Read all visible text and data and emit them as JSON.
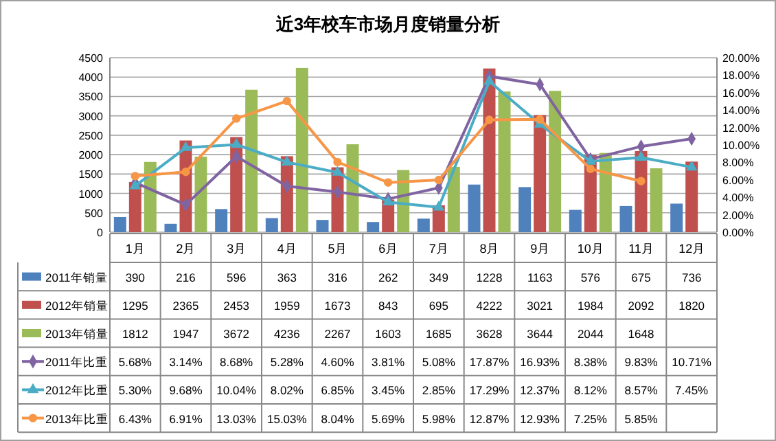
{
  "chart_data": {
    "type": "bar",
    "title": "近3年校车市场月度销量分析",
    "categories": [
      "1月",
      "2月",
      "3月",
      "4月",
      "5月",
      "6月",
      "7月",
      "8月",
      "9月",
      "10月",
      "11月",
      "12月"
    ],
    "series": [
      {
        "name": "2011年销量",
        "color": "#4f81bd",
        "values": [
          390,
          216,
          596,
          363,
          316,
          262,
          349,
          1228,
          1163,
          576,
          675,
          736
        ]
      },
      {
        "name": "2012年销量",
        "color": "#c0504d",
        "values": [
          1295,
          2365,
          2453,
          1959,
          1673,
          843,
          695,
          4222,
          3021,
          1984,
          2092,
          1820
        ]
      },
      {
        "name": "2013年销量",
        "color": "#9bbb59",
        "values": [
          1812,
          1947,
          3672,
          4236,
          2267,
          1603,
          1685,
          3628,
          3644,
          2044,
          1648,
          null
        ]
      },
      {
        "name": "2011年比重",
        "type": "line",
        "axis": "y2",
        "marker": "diamond",
        "color": "#8064a2",
        "values": [
          5.68,
          3.14,
          8.68,
          5.28,
          4.6,
          3.81,
          5.08,
          17.87,
          16.93,
          8.38,
          9.83,
          10.71
        ],
        "value_labels": [
          "5.68%",
          "3.14%",
          "8.68%",
          "5.28%",
          "4.60%",
          "3.81%",
          "5.08%",
          "17.87%",
          "16.93%",
          "8.38%",
          "9.83%",
          "10.71%"
        ]
      },
      {
        "name": "2012年比重",
        "type": "line",
        "axis": "y2",
        "marker": "triangle",
        "color": "#4bacc6",
        "values": [
          5.3,
          9.68,
          10.04,
          8.02,
          6.85,
          3.45,
          2.85,
          17.29,
          12.37,
          8.12,
          8.57,
          7.45
        ],
        "value_labels": [
          "5.30%",
          "9.68%",
          "10.04%",
          "8.02%",
          "6.85%",
          "3.45%",
          "2.85%",
          "17.29%",
          "12.37%",
          "8.12%",
          "8.57%",
          "7.45%"
        ]
      },
      {
        "name": "2013年比重",
        "type": "line",
        "axis": "y2",
        "marker": "circle",
        "color": "#f79646",
        "values": [
          6.43,
          6.91,
          13.03,
          15.03,
          8.04,
          5.69,
          5.98,
          12.87,
          12.93,
          7.25,
          5.85,
          null
        ],
        "value_labels": [
          "6.43%",
          "6.91%",
          "13.03%",
          "15.03%",
          "8.04%",
          "5.69%",
          "5.98%",
          "12.87%",
          "12.93%",
          "7.25%",
          "5.85%",
          null
        ]
      }
    ],
    "ylim": [
      0,
      4500
    ],
    "yticks": [
      0,
      500,
      1000,
      1500,
      2000,
      2500,
      3000,
      3500,
      4000,
      4500
    ],
    "y2lim": [
      0,
      20
    ],
    "y2ticks": [
      {
        "value": 0,
        "label": "0.00%"
      },
      {
        "value": 2,
        "label": "2.00%"
      },
      {
        "value": 4,
        "label": "4.00%"
      },
      {
        "value": 6,
        "label": "6.00%"
      },
      {
        "value": 8,
        "label": "8.00%"
      },
      {
        "value": 10,
        "label": "10.00%"
      },
      {
        "value": 12,
        "label": "12.00%"
      },
      {
        "value": 14,
        "label": "14.00%"
      },
      {
        "value": 16,
        "label": "16.00%"
      },
      {
        "value": 18,
        "label": "18.00%"
      },
      {
        "value": 20,
        "label": "20.00%"
      }
    ],
    "grid": "y",
    "data_labels": true,
    "legend": "bottom left"
  }
}
